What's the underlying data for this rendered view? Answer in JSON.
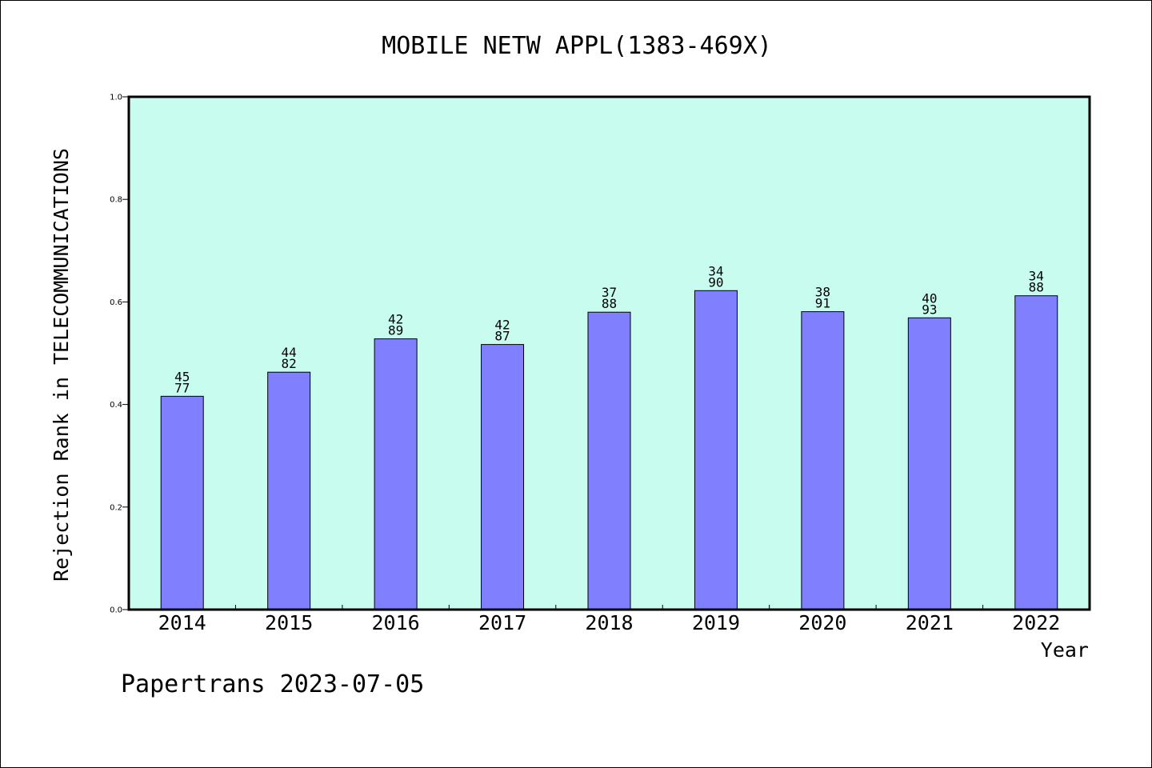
{
  "colors": {
    "plot_background": "#c8fcee",
    "bar_fill": "#8080ff",
    "bar_stroke": "#000000",
    "frame": "#000000"
  },
  "footer": "Papertrans 2023-07-05",
  "chart_data": {
    "type": "bar",
    "title": "MOBILE NETW APPL(1383-469X)",
    "xlabel": "Year",
    "ylabel": "Rejection Rank in TELECOMMUNICATIONS",
    "categories": [
      "2014",
      "2015",
      "2016",
      "2017",
      "2018",
      "2019",
      "2020",
      "2021",
      "2022"
    ],
    "values": [
      0.416,
      0.463,
      0.528,
      0.517,
      0.58,
      0.622,
      0.581,
      0.569,
      0.612
    ],
    "bar_labels": [
      [
        "45",
        "77"
      ],
      [
        "44",
        "82"
      ],
      [
        "42",
        "89"
      ],
      [
        "42",
        "87"
      ],
      [
        "37",
        "88"
      ],
      [
        "34",
        "90"
      ],
      [
        "38",
        "91"
      ],
      [
        "40",
        "93"
      ],
      [
        "34",
        "88"
      ]
    ],
    "ylim": [
      0,
      1.0
    ],
    "yticks": [
      "0.0",
      "0.2",
      "0.4",
      "0.6",
      "0.8",
      "1.0"
    ],
    "grid": false,
    "legend": false
  }
}
